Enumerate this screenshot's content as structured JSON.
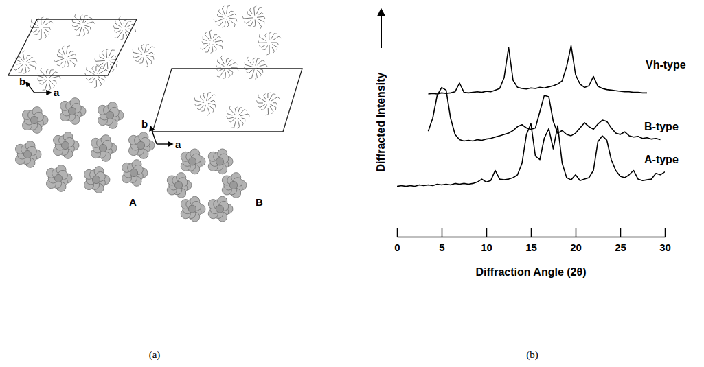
{
  "panels": [
    {
      "label": "(a)",
      "structures": [
        {
          "name": "A",
          "axis_labels": [
            "b",
            "a"
          ]
        },
        {
          "name": "B",
          "axis_labels": [
            "b",
            "a"
          ]
        }
      ]
    }
  ],
  "chart_data": {
    "type": "line",
    "panel_label": "(b)",
    "x_label": "Diffraction Angle (2θ)",
    "y_label": "Diffracted Intensity",
    "x": [
      0,
      0.5,
      1,
      1.5,
      2,
      2.5,
      3,
      3.5,
      4,
      4.5,
      5,
      5.5,
      6,
      6.5,
      7,
      7.5,
      8,
      8.5,
      9,
      9.5,
      10,
      10.5,
      11,
      11.5,
      12,
      12.5,
      13,
      13.5,
      14,
      14.5,
      15,
      15.5,
      16,
      16.5,
      17,
      17.5,
      18,
      18.5,
      19,
      19.5,
      20,
      20.5,
      21,
      21.5,
      22,
      22.5,
      23,
      23.5,
      24,
      24.5,
      25,
      25.5,
      26,
      26.5,
      27,
      27.5,
      28,
      28.5,
      29,
      29.5,
      30
    ],
    "xlim": [
      0,
      30
    ],
    "xticks": [
      0,
      5,
      10,
      15,
      20,
      25,
      30
    ],
    "ylim": [
      0,
      100
    ],
    "tick_labels": "x",
    "series": [
      {
        "name": "Vh-type",
        "color": "#000000",
        "values": [
          null,
          null,
          null,
          null,
          null,
          null,
          null,
          10,
          11,
          10,
          12,
          11,
          12,
          14,
          30,
          13,
          12,
          13,
          14,
          13,
          15,
          14,
          17,
          20,
          40,
          95,
          35,
          22,
          20,
          19,
          21,
          20,
          22,
          21,
          23,
          25,
          28,
          34,
          60,
          98,
          45,
          28,
          22,
          25,
          42,
          24,
          20,
          18,
          17,
          16,
          15,
          14,
          14,
          13,
          13,
          12,
          12,
          null,
          null,
          null,
          null
        ]
      },
      {
        "name": "B-type",
        "color": "#000000",
        "values": [
          null,
          null,
          null,
          null,
          null,
          null,
          null,
          25,
          45,
          80,
          92,
          88,
          45,
          20,
          12,
          10,
          11,
          10,
          12,
          11,
          13,
          14,
          16,
          18,
          20,
          22,
          26,
          32,
          35,
          30,
          28,
          30,
          55,
          80,
          78,
          40,
          22,
          26,
          20,
          18,
          22,
          30,
          38,
          32,
          28,
          36,
          42,
          40,
          30,
          22,
          20,
          24,
          18,
          16,
          17,
          14,
          15,
          13,
          14,
          12,
          null
        ]
      },
      {
        "name": "A-type",
        "color": "#000000",
        "values": [
          8,
          9,
          8,
          9,
          8,
          10,
          9,
          10,
          9,
          11,
          10,
          11,
          10,
          12,
          11,
          12,
          11,
          12,
          14,
          18,
          14,
          16,
          30,
          18,
          17,
          18,
          20,
          24,
          40,
          80,
          95,
          50,
          45,
          75,
          88,
          60,
          92,
          40,
          20,
          17,
          24,
          16,
          18,
          20,
          30,
          70,
          78,
          72,
          45,
          30,
          22,
          20,
          24,
          30,
          18,
          16,
          17,
          18,
          26,
          24,
          28
        ]
      }
    ]
  }
}
